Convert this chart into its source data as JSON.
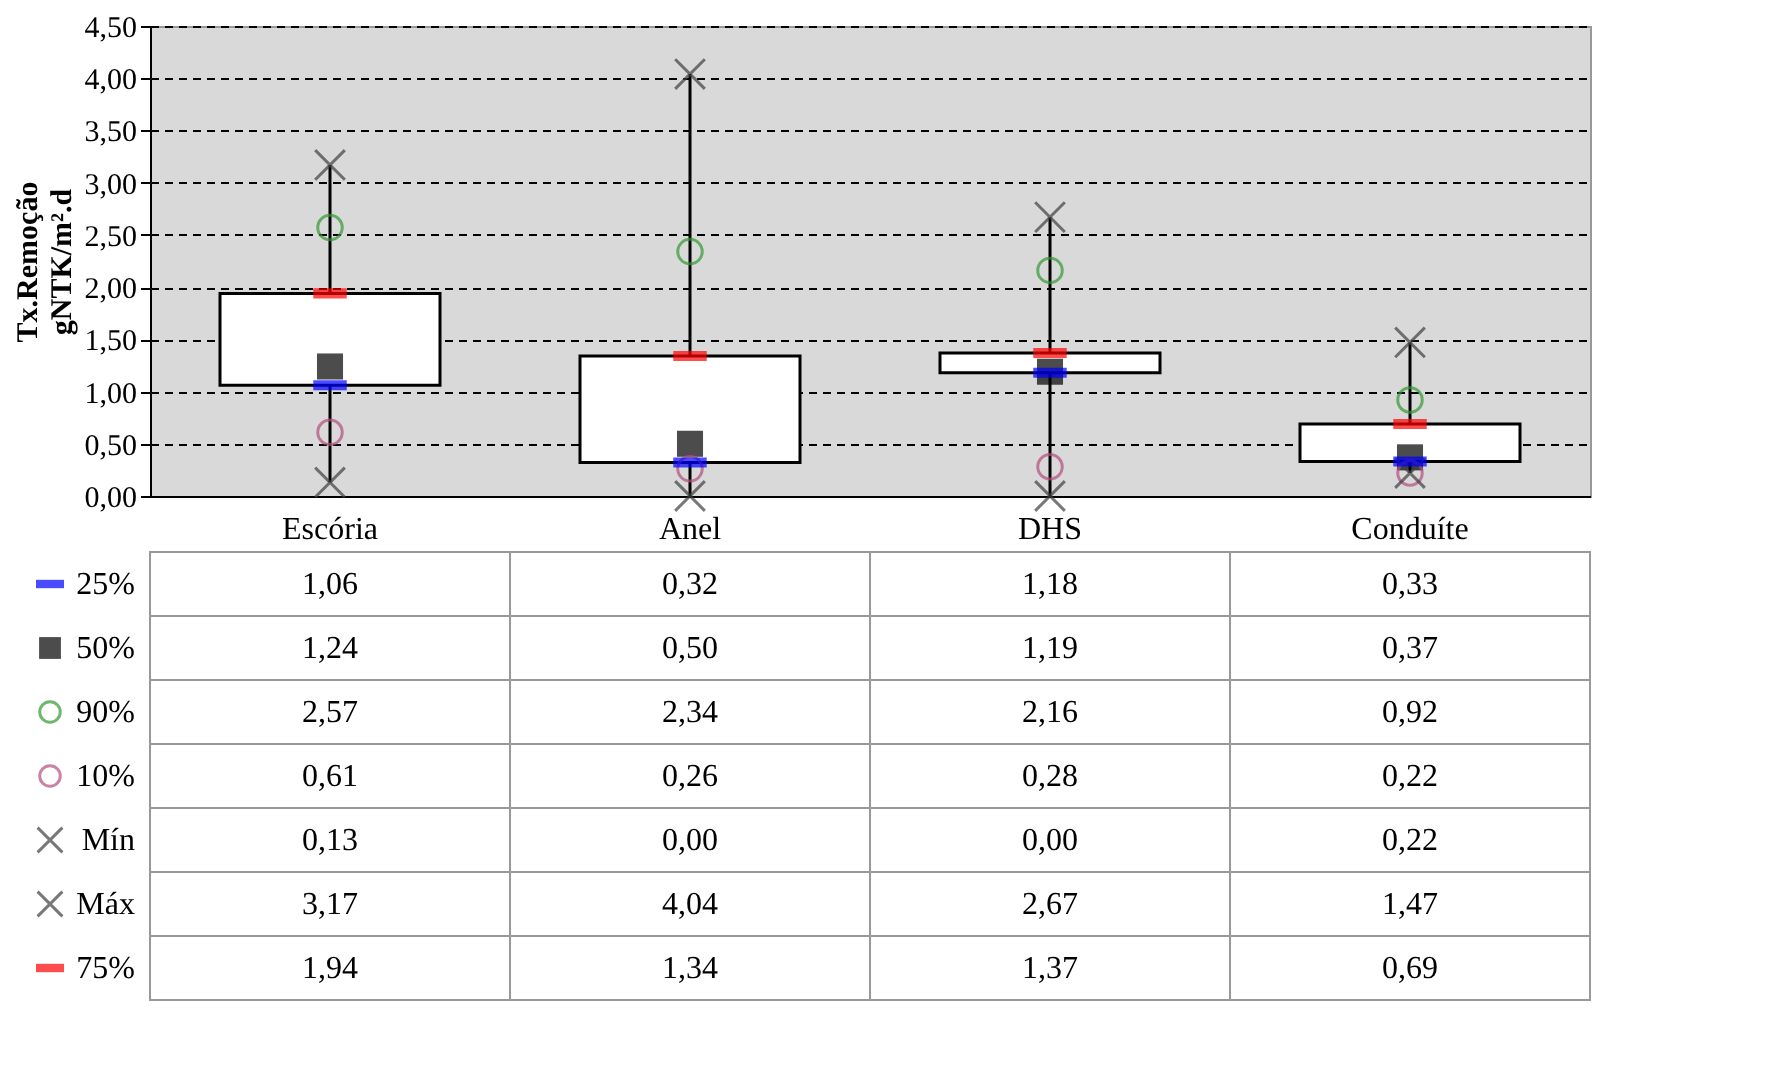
{
  "chart_data": {
    "type": "box",
    "ylabel": "Tx.Remoção\ngNTK/m².d",
    "categories": [
      "Escória",
      "Anel",
      "DHS",
      "Conduíte"
    ],
    "boxes": [
      {
        "low": 0.13,
        "q1": 1.06,
        "q3": 1.94,
        "high": 3.17
      },
      {
        "low": 0.0,
        "q1": 0.32,
        "q3": 1.34,
        "high": 4.04
      },
      {
        "low": 0.0,
        "q1": 1.18,
        "q3": 1.37,
        "high": 2.67
      },
      {
        "low": 0.22,
        "q1": 0.33,
        "q3": 0.69,
        "high": 1.47
      }
    ],
    "series": [
      {
        "name": "25%",
        "type": "scatter",
        "color": "#0000ff",
        "values": [
          1.06,
          0.32,
          1.18,
          0.33
        ],
        "value_labels": [
          "1,06",
          "0,32",
          "1,18",
          "0,33"
        ]
      },
      {
        "name": "50%",
        "type": "scatter",
        "marker": "square",
        "color": "#000000",
        "values": [
          1.24,
          0.5,
          1.19,
          0.37
        ],
        "value_labels": [
          "1,24",
          "0,50",
          "1,19",
          "0,37"
        ]
      },
      {
        "name": "90%",
        "type": "scatter",
        "marker": "circle",
        "color": "#339933",
        "values": [
          2.57,
          2.34,
          2.16,
          0.92
        ],
        "value_labels": [
          "2,57",
          "2,34",
          "2,16",
          "0,92"
        ]
      },
      {
        "name": "10%",
        "type": "scatter",
        "marker": "circle",
        "color": "#b2507f",
        "values": [
          0.61,
          0.26,
          0.28,
          0.22
        ],
        "value_labels": [
          "0,61",
          "0,26",
          "0,28",
          "0,22"
        ]
      },
      {
        "name": "Mín",
        "type": "scatter",
        "marker": "cross",
        "color": "#404040",
        "values": [
          0.13,
          0.0,
          0.0,
          0.22
        ],
        "value_labels": [
          "0,13",
          "0,00",
          "0,00",
          "0,22"
        ]
      },
      {
        "name": "Máx",
        "type": "scatter",
        "marker": "cross",
        "color": "#404040",
        "values": [
          3.17,
          4.04,
          2.67,
          1.47
        ],
        "value_labels": [
          "3,17",
          "4,04",
          "2,67",
          "1,47"
        ]
      },
      {
        "name": "75%",
        "type": "scatter",
        "color": "#ff0000",
        "values": [
          1.94,
          1.34,
          1.37,
          0.69
        ],
        "value_labels": [
          "1,94",
          "1,34",
          "1,37",
          "0,69"
        ]
      }
    ],
    "ylim": [
      0,
      4.5
    ],
    "yticks": [
      {
        "value": 0,
        "label": "0,00"
      },
      {
        "value": 0.5,
        "label": "0,50"
      },
      {
        "value": 1,
        "label": "1,00"
      },
      {
        "value": 1.5,
        "label": "1,50"
      },
      {
        "value": 2,
        "label": "2,00"
      },
      {
        "value": 2.5,
        "label": "2,50"
      },
      {
        "value": 3,
        "label": "3,00"
      },
      {
        "value": 3.5,
        "label": "3,50"
      },
      {
        "value": 4,
        "label": "4,00"
      },
      {
        "value": 4.5,
        "label": "4,50"
      }
    ],
    "grid": "y",
    "legend": "bottom"
  }
}
